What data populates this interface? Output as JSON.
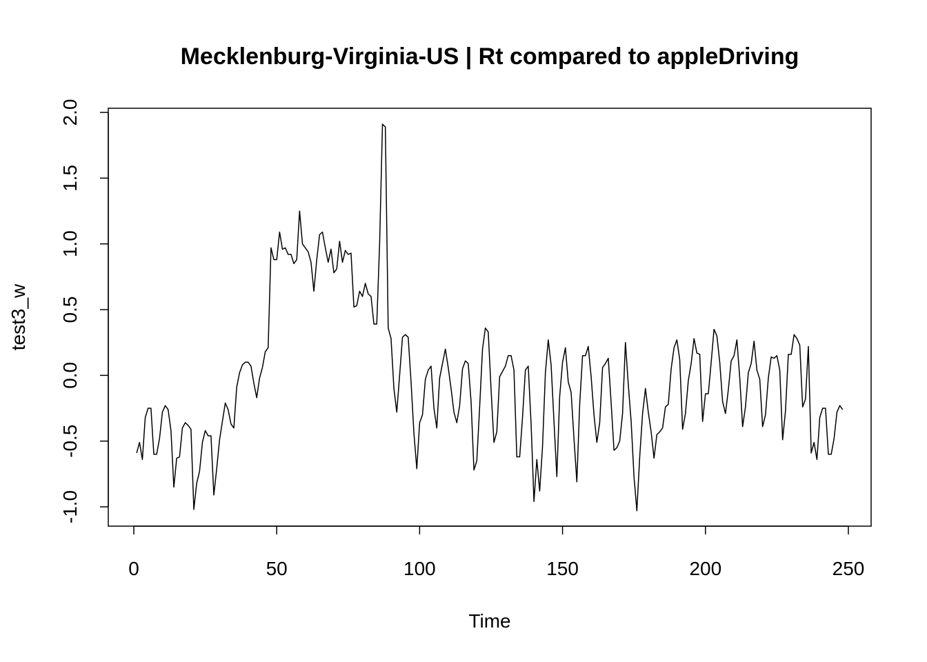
{
  "chart_data": {
    "type": "line",
    "title": "Mecklenburg-Virginia-US | Rt compared to appleDriving",
    "xlabel": "Time",
    "ylabel": "test3_w",
    "xlim": [
      0,
      250
    ],
    "ylim": [
      -1.0,
      2.0
    ],
    "x_ticks": [
      0,
      50,
      100,
      150,
      200,
      250
    ],
    "x_tick_labels": [
      "0",
      "50",
      "100",
      "150",
      "200",
      "250"
    ],
    "y_ticks": [
      -1.0,
      -0.5,
      0.0,
      0.5,
      1.0,
      1.5,
      2.0
    ],
    "y_tick_labels": [
      "-1.0",
      "-0.5",
      "0.0",
      "0.5",
      "1.0",
      "1.5",
      "2.0"
    ],
    "grid": false,
    "line_color": "#000000",
    "series": [
      {
        "x": [
          1,
          2,
          3,
          4,
          5,
          6,
          7,
          8,
          9,
          10,
          11,
          12,
          13,
          14,
          15,
          16,
          17,
          18,
          19,
          20,
          21,
          22,
          23,
          24,
          25,
          26,
          27,
          28,
          29,
          30,
          31,
          32,
          33,
          34,
          35,
          36,
          37,
          38,
          39,
          40,
          41,
          42,
          43,
          44,
          45,
          46,
          47,
          48,
          49,
          50,
          51,
          52,
          53,
          54,
          55,
          56,
          57,
          58,
          59,
          60,
          61,
          62,
          63,
          64,
          65,
          66,
          67,
          68,
          69,
          70,
          71,
          72,
          73,
          74,
          75,
          76,
          77,
          78,
          79,
          80,
          81,
          82,
          83,
          84,
          85,
          86,
          87,
          88,
          89,
          90,
          91,
          92,
          93,
          94,
          95,
          96,
          97,
          98,
          99,
          100,
          101,
          102,
          103,
          104,
          105,
          106,
          107,
          108,
          109,
          110,
          111,
          112,
          113,
          114,
          115,
          116,
          117,
          118,
          119,
          120,
          121,
          122,
          123,
          124,
          125,
          126,
          127,
          128,
          129,
          130,
          131,
          132,
          133,
          134,
          135,
          136,
          137,
          138,
          139,
          140,
          141,
          142,
          143,
          144,
          145,
          146,
          147,
          148,
          149,
          150,
          151,
          152,
          153,
          154,
          155,
          156,
          157,
          158,
          159,
          160,
          161,
          162,
          163,
          164,
          165,
          166,
          167,
          168,
          169,
          170,
          171,
          172,
          173,
          174,
          175,
          176,
          177,
          178,
          179,
          180,
          181,
          182,
          183,
          184,
          185,
          186,
          187,
          188,
          189,
          190,
          191,
          192,
          193,
          194,
          195,
          196,
          197,
          198,
          199,
          200,
          201,
          202,
          203,
          204,
          205,
          206,
          207,
          208,
          209,
          210,
          211,
          212,
          213,
          214,
          215,
          216,
          217,
          218,
          219,
          220,
          221,
          222,
          223,
          224,
          225,
          226,
          227,
          228,
          229,
          230,
          231,
          232,
          233,
          234,
          235,
          236,
          237,
          238,
          239,
          240,
          241,
          242,
          243,
          244,
          245,
          246,
          247,
          248
        ],
        "values": [
          -0.59,
          -0.51,
          -0.64,
          -0.32,
          -0.25,
          -0.25,
          -0.6,
          -0.6,
          -0.48,
          -0.28,
          -0.23,
          -0.26,
          -0.42,
          -0.85,
          -0.63,
          -0.62,
          -0.4,
          -0.36,
          -0.38,
          -0.41,
          -1.02,
          -0.82,
          -0.73,
          -0.51,
          -0.42,
          -0.46,
          -0.46,
          -0.91,
          -0.71,
          -0.49,
          -0.35,
          -0.21,
          -0.26,
          -0.37,
          -0.4,
          -0.09,
          0.02,
          0.08,
          0.1,
          0.1,
          0.07,
          -0.06,
          -0.17,
          -0.02,
          0.06,
          0.18,
          0.21,
          0.97,
          0.88,
          0.88,
          1.09,
          0.96,
          0.97,
          0.92,
          0.92,
          0.85,
          0.88,
          1.25,
          1.0,
          0.97,
          0.94,
          0.86,
          0.64,
          0.88,
          1.07,
          1.09,
          0.97,
          0.86,
          0.96,
          0.78,
          0.81,
          1.02,
          0.86,
          0.95,
          0.92,
          0.93,
          0.52,
          0.53,
          0.64,
          0.6,
          0.7,
          0.62,
          0.6,
          0.39,
          0.39,
          1.0,
          1.91,
          1.89,
          0.36,
          0.28,
          -0.1,
          -0.28,
          0.0,
          0.29,
          0.31,
          0.29,
          -0.05,
          -0.44,
          -0.71,
          -0.36,
          -0.3,
          -0.03,
          0.04,
          0.07,
          -0.25,
          -0.4,
          -0.02,
          0.09,
          0.2,
          0.06,
          -0.1,
          -0.28,
          -0.36,
          -0.23,
          0.05,
          0.11,
          0.09,
          -0.2,
          -0.72,
          -0.65,
          -0.24,
          0.2,
          0.36,
          0.33,
          -0.11,
          -0.51,
          -0.43,
          -0.01,
          0.03,
          0.07,
          0.15,
          0.15,
          0.04,
          -0.62,
          -0.62,
          -0.32,
          0.04,
          0.07,
          -0.37,
          -0.96,
          -0.64,
          -0.88,
          -0.54,
          0.02,
          0.27,
          0.08,
          -0.35,
          -0.77,
          -0.16,
          0.1,
          0.21,
          -0.05,
          -0.13,
          -0.48,
          -0.81,
          -0.22,
          0.15,
          0.15,
          0.22,
          -0.01,
          -0.3,
          -0.51,
          -0.36,
          0.06,
          0.09,
          0.13,
          -0.21,
          -0.57,
          -0.55,
          -0.5,
          -0.29,
          0.25,
          -0.07,
          -0.35,
          -0.77,
          -1.03,
          -0.62,
          -0.29,
          -0.1,
          -0.28,
          -0.43,
          -0.63,
          -0.45,
          -0.43,
          -0.4,
          -0.24,
          -0.22,
          0.05,
          0.21,
          0.27,
          0.12,
          -0.41,
          -0.29,
          -0.04,
          0.09,
          0.28,
          0.17,
          0.16,
          -0.35,
          -0.14,
          -0.14,
          0.1,
          0.35,
          0.3,
          0.1,
          -0.2,
          -0.29,
          -0.11,
          0.11,
          0.15,
          0.27,
          -0.02,
          -0.39,
          -0.24,
          0.02,
          0.09,
          0.26,
          0.04,
          -0.03,
          -0.39,
          -0.3,
          -0.02,
          0.14,
          0.13,
          0.15,
          0.04,
          -0.49,
          -0.27,
          0.16,
          0.16,
          0.31,
          0.28,
          0.23,
          -0.24,
          -0.18,
          0.22,
          -0.59,
          -0.51,
          -0.64,
          -0.32,
          -0.25,
          -0.25,
          -0.6,
          -0.6,
          -0.48,
          -0.28,
          -0.23,
          -0.26
        ]
      }
    ]
  }
}
